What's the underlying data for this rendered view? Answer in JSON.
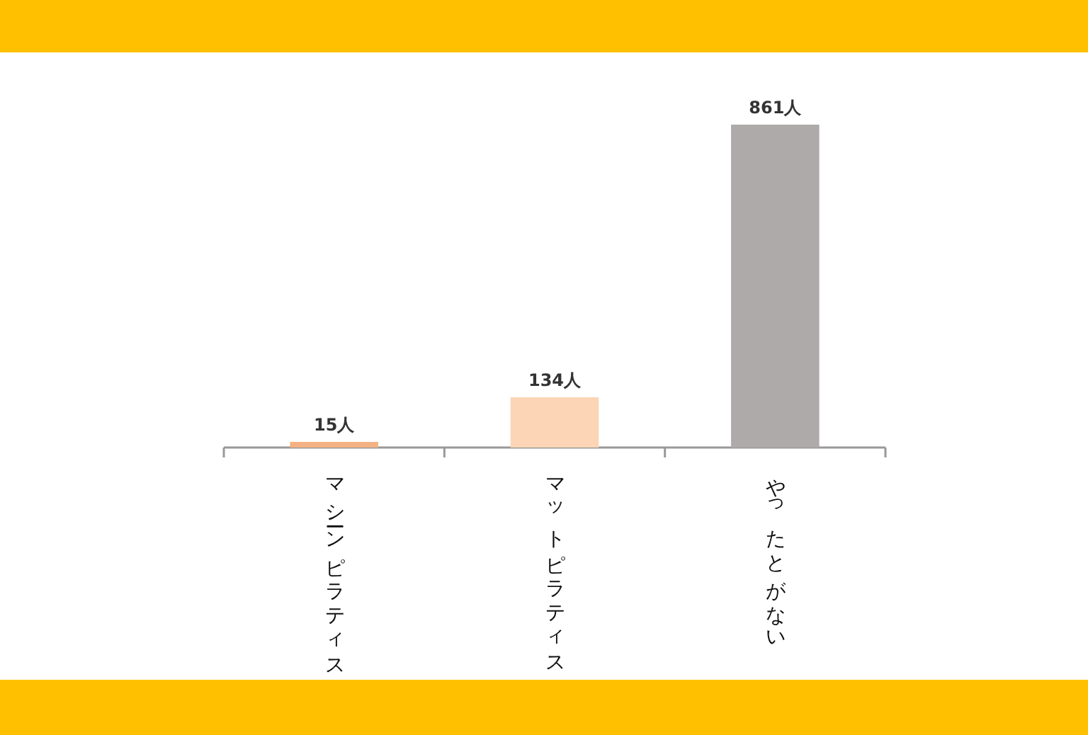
{
  "chart_data": {
    "type": "bar",
    "categories": [
      "マシーンピラティス",
      "マットピラティス",
      "やったとがない"
    ],
    "values": [
      15,
      134,
      861
    ],
    "colors": [
      "#f4b183",
      "#fbd5b5",
      "#aeaaaa"
    ],
    "value_labels": [
      "15人",
      "134人",
      "861人"
    ]
  }
}
